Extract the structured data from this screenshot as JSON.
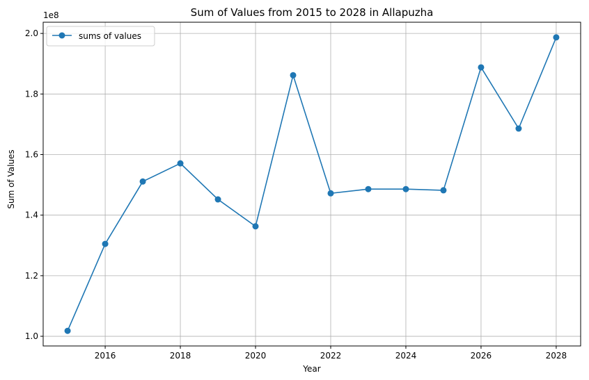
{
  "chart_data": {
    "type": "line",
    "title": "Sum of Values from 2015 to 2028 in Allapuzha",
    "xlabel": "Year",
    "ylabel": "Sum of Values",
    "y_offset_label": "1e8",
    "x_ticks": [
      "2016",
      "2018",
      "2020",
      "2022",
      "2024",
      "2026",
      "2028"
    ],
    "y_ticks": [
      "1.0",
      "1.2",
      "1.4",
      "1.6",
      "1.8",
      "2.0"
    ],
    "xlim": [
      2014.35,
      2028.65
    ],
    "ylim": [
      96800000,
      203700000
    ],
    "grid": true,
    "legend_position": "top-left",
    "series": [
      {
        "name": "sums of values",
        "color": "#1f77b4",
        "x": [
          2015,
          2016,
          2017,
          2018,
          2019,
          2020,
          2021,
          2022,
          2023,
          2024,
          2025,
          2026,
          2027,
          2028
        ],
        "y": [
          101800000,
          130500000,
          151100000,
          157100000,
          145200000,
          136300000,
          186200000,
          147200000,
          148600000,
          148600000,
          148200000,
          188800000,
          168600000,
          198700000
        ]
      }
    ]
  }
}
